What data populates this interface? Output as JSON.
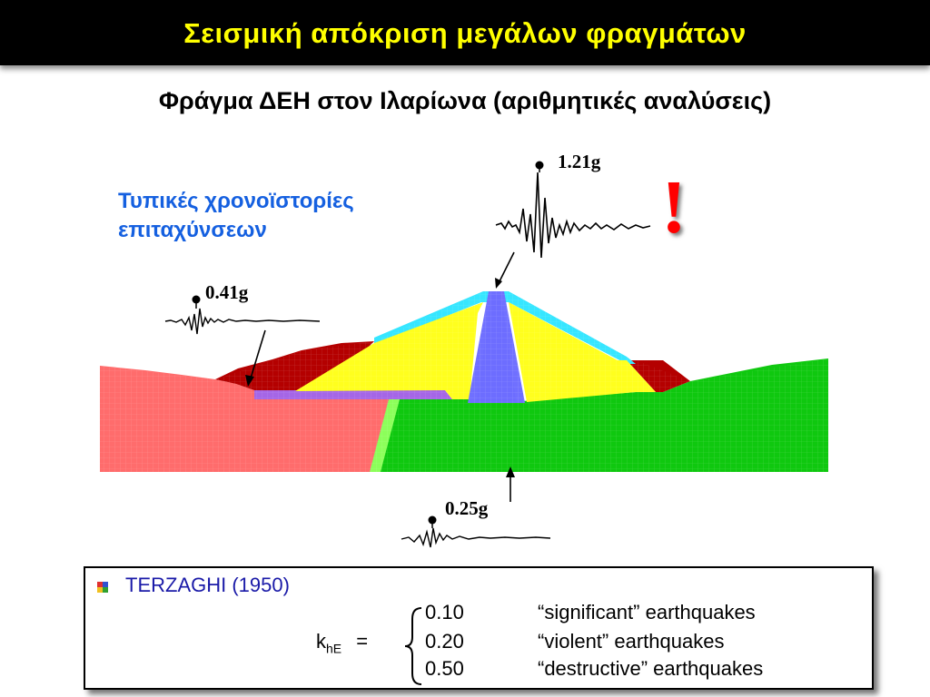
{
  "title": "Σεισμική απόκριση μεγάλων φραγμάτων",
  "subtitle": "Φράγμα ΔΕΗ στον Ιλαρίωνα (αριθμητικές αναλύσεις)",
  "note_line1": "Τυπικές χρονοϊστορίες",
  "note_line2": "επιταχύνσεων",
  "accelerations": {
    "crest": "1.21g",
    "left_bank": "0.41g",
    "base": "0.25g"
  },
  "exclamation": "!",
  "colors": {
    "title_text": "#ffff00",
    "note_text": "#1560e0",
    "heading_text": "#1a1aa8",
    "foundation_green": "#0fc80f",
    "left_rock_pink": "#ff6c6c",
    "abutment_red": "#b40000",
    "shell_yellow": "#ffff1e",
    "core_blue": "#7070ff",
    "filter_cyan": "#36e6ff",
    "blanket_purple": "#a566e6",
    "exclamation": "#ff0000"
  },
  "box": {
    "heading": "TERZAGHI (1950)",
    "k_main": "k",
    "k_sub": "hE",
    "equals": "=",
    "rows": [
      {
        "value": "0.10",
        "desc": "“significant” earthquakes"
      },
      {
        "value": "0.20",
        "desc": "“violent” earthquakes"
      },
      {
        "value": "0.50",
        "desc": "“destructive” earthquakes"
      }
    ]
  }
}
